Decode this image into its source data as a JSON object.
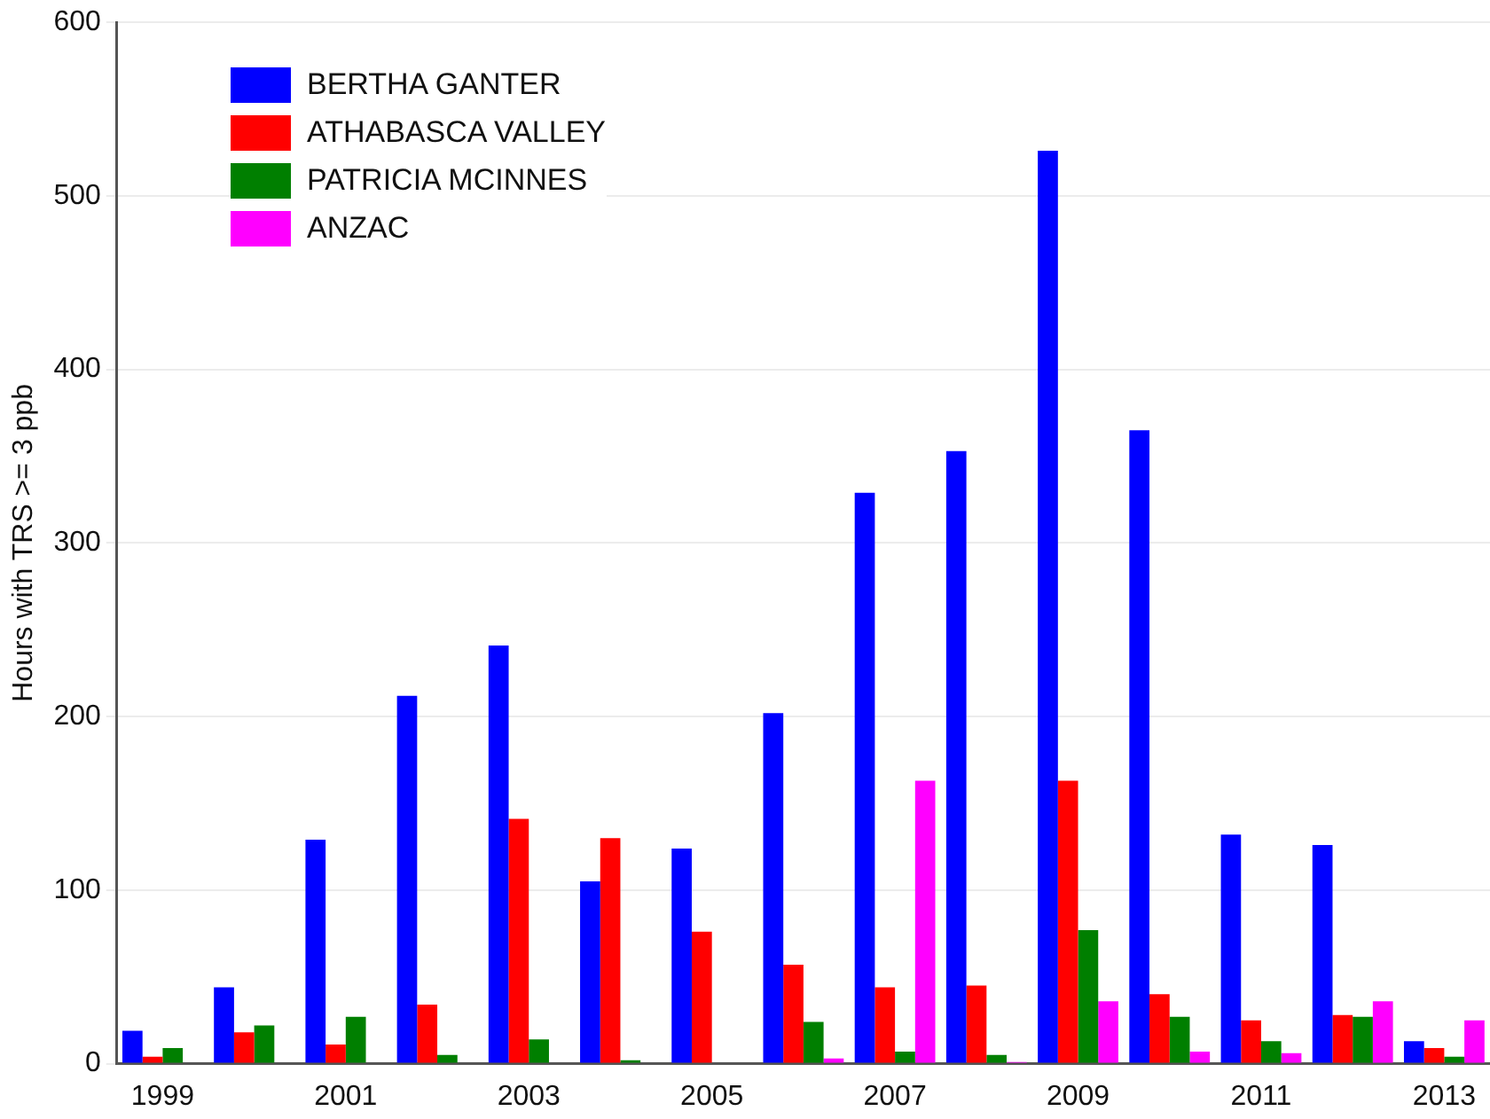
{
  "chart_data": {
    "type": "bar",
    "ylabel": "Hours with TRS >= 3 ppb",
    "categories": [
      "1999",
      null,
      "2001",
      null,
      "2003",
      null,
      "2005",
      null,
      "2007",
      null,
      "2009",
      null,
      "2011",
      null,
      "2013"
    ],
    "series": [
      {
        "name": "BERTHA GANTER",
        "color": "#0000ff",
        "values": [
          19,
          44,
          129,
          212,
          241,
          105,
          124,
          202,
          329,
          353,
          526,
          365,
          132,
          126,
          13
        ]
      },
      {
        "name": "ATHABASCA VALLEY",
        "color": "#ff0000",
        "values": [
          4,
          18,
          11,
          34,
          141,
          130,
          76,
          57,
          44,
          45,
          163,
          40,
          25,
          28,
          9
        ]
      },
      {
        "name": "PATRICIA MCINNES",
        "color": "#007f00",
        "values": [
          9,
          22,
          27,
          5,
          14,
          2,
          0,
          24,
          7,
          5,
          77,
          27,
          13,
          27,
          4
        ]
      },
      {
        "name": "ANZAC",
        "color": "#ff00ff",
        "values": [
          0,
          0,
          0,
          0,
          0,
          0,
          0,
          3,
          163,
          1,
          36,
          7,
          6,
          36,
          25
        ]
      }
    ],
    "ylim": [
      0,
      600
    ],
    "yticks": [
      0,
      100,
      200,
      300,
      400,
      500,
      600
    ],
    "grid": "y",
    "legend": "top left"
  }
}
